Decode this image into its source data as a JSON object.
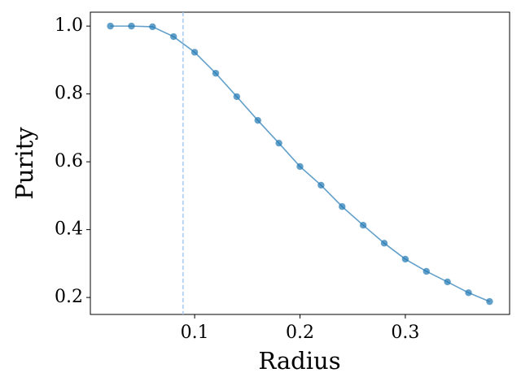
{
  "chart_data": {
    "type": "line",
    "x_label": "Radius",
    "y_label": "Purity",
    "x": [
      0.02,
      0.04,
      0.06,
      0.08,
      0.1,
      0.12,
      0.14,
      0.16,
      0.18,
      0.2,
      0.22,
      0.24,
      0.26,
      0.28,
      0.3,
      0.32,
      0.34,
      0.36,
      0.38
    ],
    "series": [
      {
        "color": "#1f77b4",
        "values": [
          1.0,
          1.0,
          0.998,
          0.969,
          0.923,
          0.861,
          0.792,
          0.722,
          0.655,
          0.586,
          0.531,
          0.468,
          0.413,
          0.36,
          0.313,
          0.277,
          0.246,
          0.214,
          0.188
        ]
      }
    ],
    "vline": {
      "x": 0.089,
      "color": "#a6c8ec"
    },
    "xlim": [
      0.001,
      0.399
    ],
    "ylim": [
      0.15,
      1.041
    ],
    "xticks": [
      0.1,
      0.2,
      0.3
    ],
    "yticks": [
      0.2,
      0.4,
      0.6,
      0.8,
      {
        "value": 1,
        "label": "1.0"
      }
    ]
  }
}
